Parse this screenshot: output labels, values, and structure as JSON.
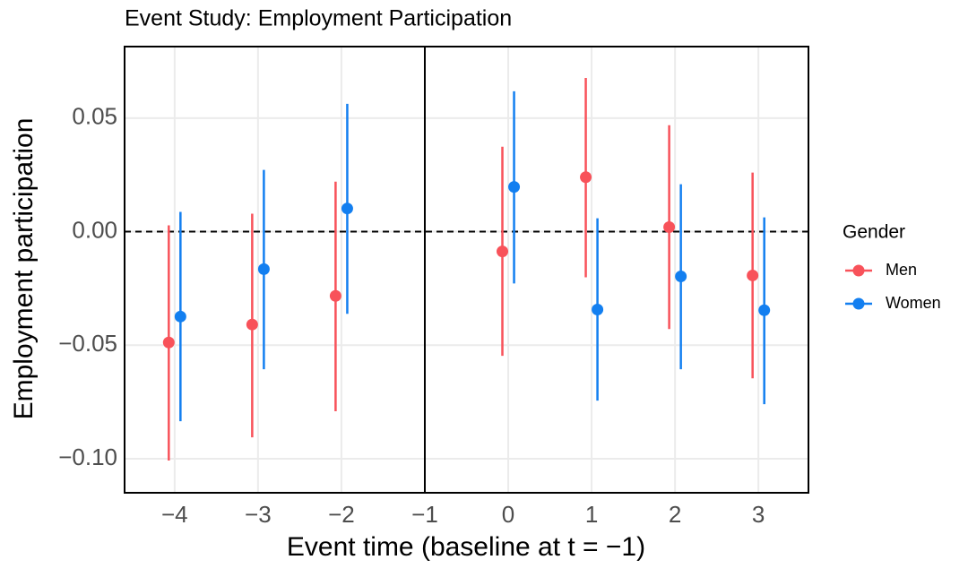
{
  "chart_data": {
    "type": "errorbar",
    "title": "Event Study: Employment Participation",
    "x_label": "Event time (baseline at t = −1)",
    "y_label": "Employment participation",
    "legend_title": "Gender",
    "legend_position": "right",
    "grid": true,
    "x": [
      -4,
      -3,
      -2,
      0,
      1,
      2,
      3
    ],
    "series": [
      {
        "name": "Men",
        "color": "#f8525a",
        "values": [
          -0.0488,
          -0.0409,
          -0.0283,
          -0.0087,
          0.024,
          0.002,
          -0.0193
        ],
        "lower": [
          -0.1008,
          -0.0906,
          -0.0791,
          -0.0547,
          -0.0201,
          -0.0429,
          -0.0646
        ],
        "upper": [
          0.0028,
          0.0079,
          0.022,
          0.0374,
          0.0677,
          0.0469,
          0.026
        ]
      },
      {
        "name": "Women",
        "color": "#137ff0",
        "values": [
          -0.0374,
          -0.0165,
          0.0102,
          0.0197,
          -0.0343,
          -0.0197,
          -0.0346
        ],
        "lower": [
          -0.0835,
          -0.0606,
          -0.0362,
          -0.0228,
          -0.0744,
          -0.0606,
          -0.076
        ],
        "upper": [
          0.0087,
          0.0272,
          0.0563,
          0.0618,
          0.0059,
          0.0209,
          0.0063
        ]
      }
    ],
    "reference_lines": {
      "x": -1,
      "y": 0
    },
    "xlim": [
      -4.6,
      3.6
    ],
    "ylim": [
      -0.115,
      0.0815
    ],
    "xticks": [
      {
        "value": -4,
        "label": "−4"
      },
      {
        "value": -3,
        "label": "−3"
      },
      {
        "value": -2,
        "label": "−2"
      },
      {
        "value": -1,
        "label": "−1"
      },
      0,
      1,
      2,
      3
    ],
    "yticks": [
      {
        "value": -0.1,
        "label": "−0.10"
      },
      {
        "value": -0.05,
        "label": "−0.05"
      },
      {
        "value": 0,
        "label": "0.00"
      },
      0.05
    ]
  }
}
